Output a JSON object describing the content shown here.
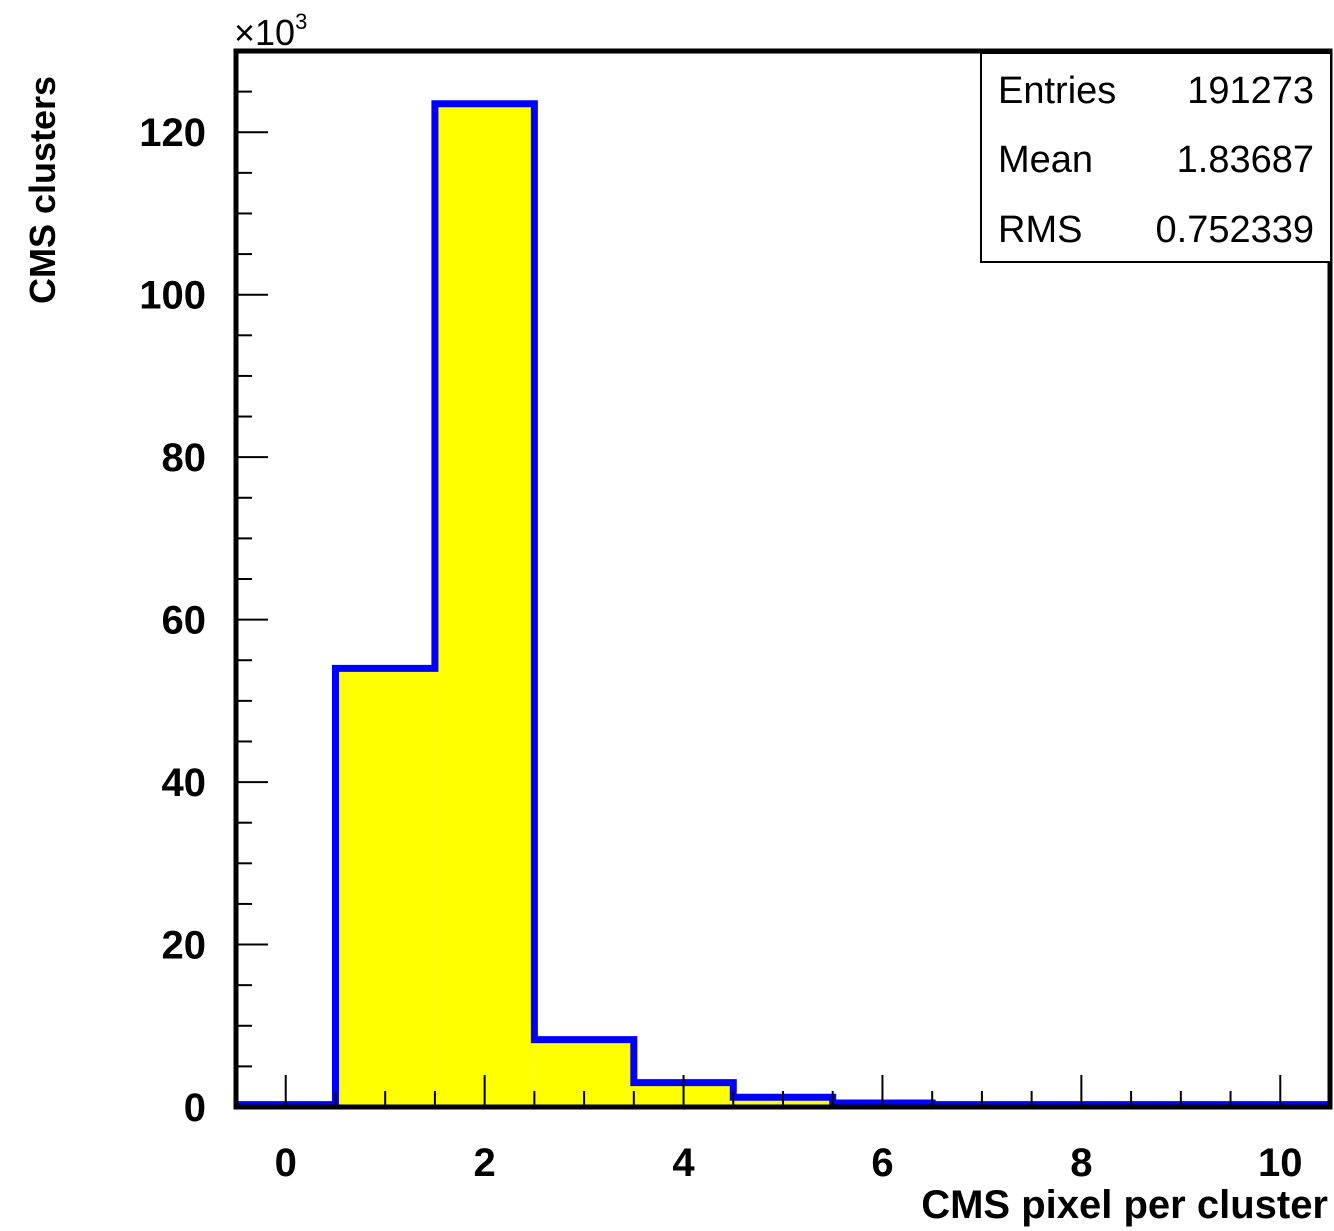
{
  "chart_data": {
    "type": "bar",
    "subtype": "histogram",
    "xlabel": "CMS pixel per cluster",
    "ylabel": "CMS clusters",
    "y_multiplier_label": "×10",
    "y_multiplier_exponent": "3",
    "xlim": [
      -0.5,
      10.5
    ],
    "ylim": [
      0,
      130
    ],
    "x_ticks": [
      0,
      2,
      4,
      6,
      8,
      10
    ],
    "y_ticks": [
      0,
      20,
      40,
      60,
      80,
      100,
      120
    ],
    "bin_width": 1,
    "bin_centers": [
      0,
      1,
      2,
      3,
      4,
      5,
      6,
      7,
      8,
      9,
      10
    ],
    "values": [
      0.3,
      54,
      123.5,
      8.3,
      3.0,
      1.2,
      0.5,
      0.3,
      0.3,
      0.3,
      0.3
    ],
    "fill_color": "#ffff00",
    "line_color": "#0000ff",
    "grid": false,
    "stats_box": {
      "position": "top-right",
      "rows": [
        {
          "label": "Entries",
          "value": "191273"
        },
        {
          "label": "Mean",
          "value": "1.83687"
        },
        {
          "label": "RMS",
          "value": "0.752339"
        }
      ]
    }
  }
}
